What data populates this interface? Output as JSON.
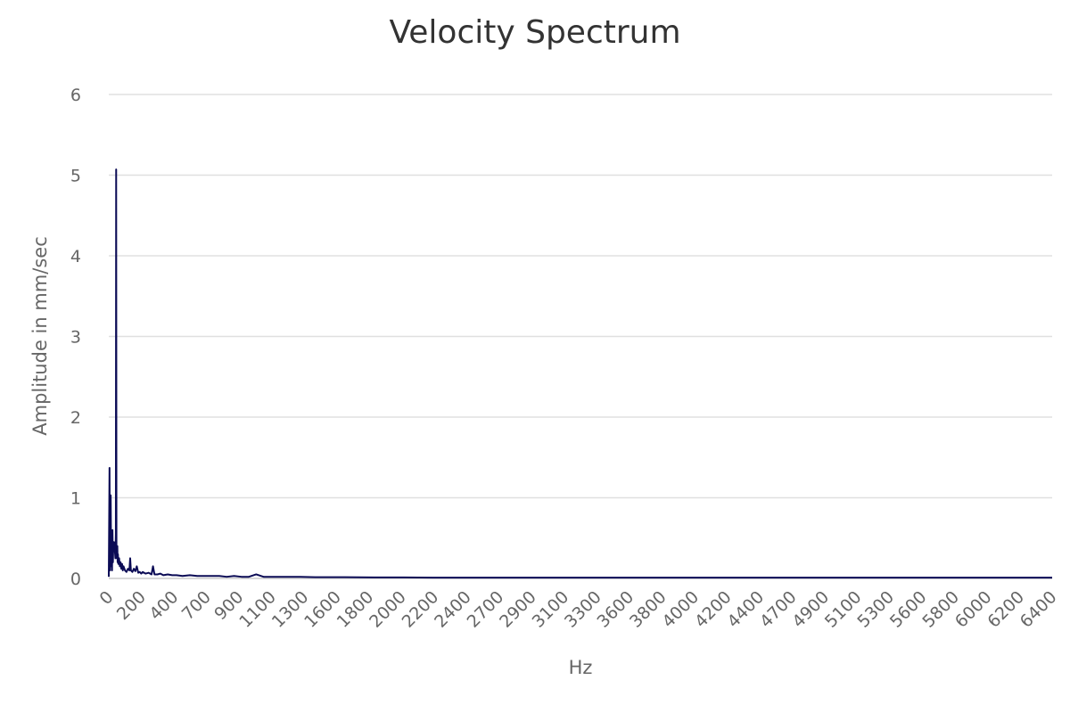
{
  "chart_data": {
    "type": "line",
    "title": "Velocity Spectrum",
    "xlabel": "Hz",
    "ylabel": "Amplitude in mm/sec",
    "xlim": [
      0,
      6400
    ],
    "ylim": [
      0,
      6
    ],
    "y_ticks": [
      0,
      1,
      2,
      3,
      4,
      5,
      6
    ],
    "x_tick_labels": [
      "0",
      "200",
      "400",
      "700",
      "900",
      "1100",
      "1300",
      "1600",
      "1800",
      "2000",
      "2200",
      "2400",
      "2700",
      "2900",
      "3100",
      "3300",
      "3600",
      "3800",
      "4000",
      "4200",
      "4400",
      "4700",
      "4900",
      "5100",
      "5300",
      "5600",
      "5800",
      "6000",
      "6200",
      "6400"
    ],
    "grid": true,
    "legend": "none",
    "line_color": "#0b0b55",
    "series": [
      {
        "x": [
          0,
          5,
          8,
          10,
          13,
          16,
          20,
          22,
          25,
          28,
          30,
          35,
          40,
          45,
          48,
          50,
          52,
          55,
          58,
          60,
          62,
          65,
          70,
          75,
          80,
          85,
          90,
          95,
          100,
          110,
          120,
          130,
          140,
          145,
          150,
          160,
          170,
          180,
          190,
          200,
          210,
          220,
          230,
          250,
          270,
          290,
          300,
          310,
          330,
          350,
          370,
          400,
          430,
          460,
          500,
          550,
          600,
          650,
          700,
          750,
          800,
          850,
          900,
          950,
          1000,
          1050,
          1100,
          1150,
          1200,
          1300,
          1400,
          1500,
          1600,
          1800,
          2000,
          2200,
          2400,
          2600,
          2800,
          3000,
          3200,
          3400,
          3600,
          3800,
          4000,
          4200,
          4400,
          4600,
          4800,
          5000,
          5200,
          5400,
          5600,
          5800,
          6000,
          6200,
          6400
        ],
        "y": [
          0.02,
          1.37,
          0.1,
          0.45,
          1.03,
          0.15,
          0.5,
          0.1,
          0.6,
          0.2,
          0.35,
          0.45,
          0.38,
          0.25,
          0.55,
          5.07,
          0.3,
          0.25,
          0.4,
          0.2,
          0.3,
          0.18,
          0.25,
          0.15,
          0.2,
          0.12,
          0.18,
          0.1,
          0.15,
          0.1,
          0.08,
          0.12,
          0.1,
          0.25,
          0.1,
          0.08,
          0.12,
          0.09,
          0.15,
          0.07,
          0.08,
          0.06,
          0.08,
          0.06,
          0.07,
          0.05,
          0.15,
          0.05,
          0.05,
          0.06,
          0.04,
          0.05,
          0.04,
          0.04,
          0.03,
          0.04,
          0.03,
          0.03,
          0.03,
          0.03,
          0.02,
          0.03,
          0.02,
          0.02,
          0.05,
          0.02,
          0.02,
          0.02,
          0.02,
          0.02,
          0.015,
          0.015,
          0.015,
          0.012,
          0.012,
          0.01,
          0.01,
          0.01,
          0.01,
          0.01,
          0.01,
          0.01,
          0.01,
          0.01,
          0.01,
          0.01,
          0.01,
          0.01,
          0.01,
          0.01,
          0.01,
          0.01,
          0.01,
          0.01,
          0.01,
          0.01,
          0.01
        ]
      }
    ]
  }
}
